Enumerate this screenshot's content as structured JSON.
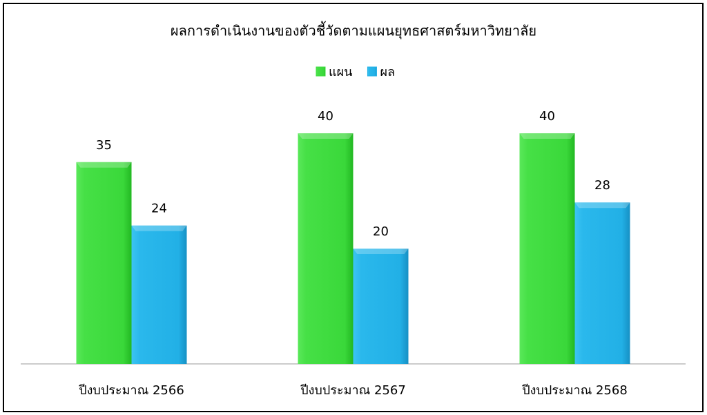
{
  "chart_data": {
    "type": "bar",
    "title": "ผลการดำเนินงานของตัวชี้วัดตามแผนยุทธศาสตร์มหาวิทยาลัย",
    "categories": [
      "ปีงบประมาณ 2566",
      "ปีงบประมาณ 2567",
      "ปีงบประมาณ 2568"
    ],
    "series": [
      {
        "name": "แผน",
        "color": "#3ddc3d",
        "values": [
          35,
          40,
          40
        ]
      },
      {
        "name": "ผล",
        "color": "#22b0e6",
        "values": [
          24,
          20,
          28
        ]
      }
    ],
    "legend": "top"
  }
}
